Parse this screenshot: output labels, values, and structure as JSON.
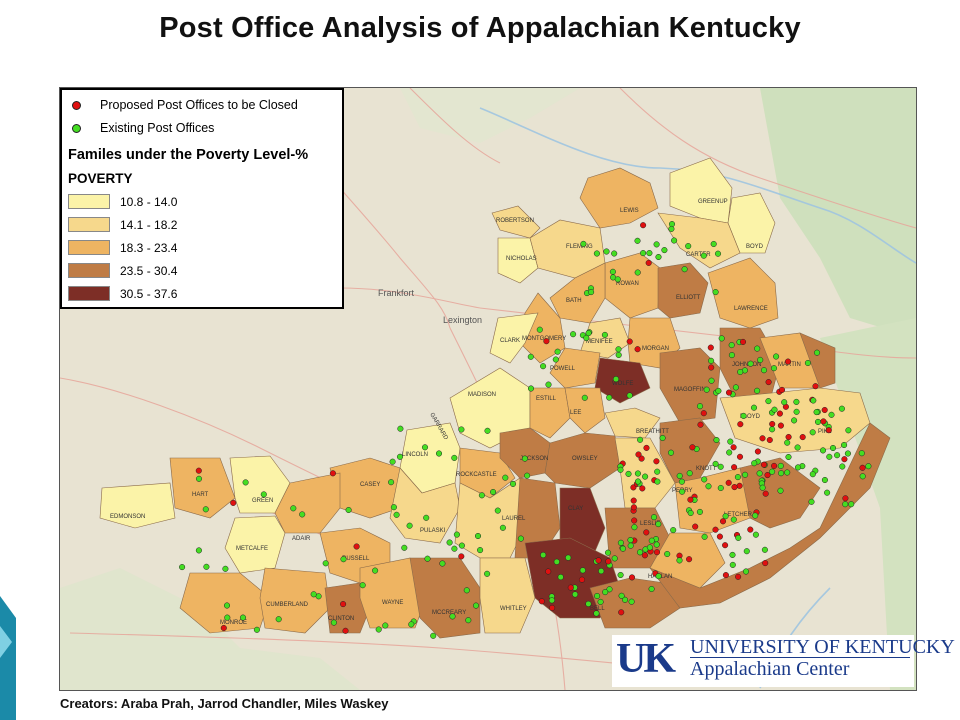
{
  "title": "Post Office Analysis of Appalachian Kentucky",
  "legend": {
    "closed_label": "Proposed Post Offices to be Closed",
    "existing_label": "Existing Post Offices",
    "title": "Familes under the Poverty Level-%",
    "subtitle": "POVERTY",
    "classes": [
      {
        "label": "10.8 - 14.0",
        "color": "#fbf3a8"
      },
      {
        "label": "14.1 - 18.2",
        "color": "#f6d88c"
      },
      {
        "label": "18.3 - 23.4",
        "color": "#eeb462"
      },
      {
        "label": "23.5 - 30.4",
        "color": "#bf7c45"
      },
      {
        "label": "30.5 - 37.6",
        "color": "#7d2e26"
      }
    ],
    "closed_color": "#e01010",
    "existing_color": "#44dd22"
  },
  "cities": [
    "Frankfort",
    "Lexington"
  ],
  "counties": {
    "robertson": "ROBERTSON",
    "nicholas": "NICHOLAS",
    "fleming": "FLEMING",
    "lewis": "LEWIS",
    "greenup": "GREENUP",
    "boyd": "BOYD",
    "carter": "CARTER",
    "rowan": "ROWAN",
    "bath": "BATH",
    "elliott": "ELLIOTT",
    "lawrence": "LAWRENCE",
    "montgomery": "MONTGOMERY",
    "menifee": "MENIFEE",
    "morgan": "MORGAN",
    "clark": "CLARK",
    "powell": "POWELL",
    "wolfe": "WOLFE",
    "magoffin": "MAGOFFIN",
    "johnson": "JOHNSON",
    "martin": "MARTIN",
    "madison": "MADISON",
    "estill": "ESTILL",
    "lee": "LEE",
    "breathitt": "BREATHITT",
    "floyd": "FLOYD",
    "pike": "PIKE",
    "garrard": "GARRARD",
    "jackson": "JACKSON",
    "owsley": "OWSLEY",
    "knott": "KNOTT",
    "lincoln": "LINCOLN",
    "rockcastle": "ROCKCASTLE",
    "perry": "PERRY",
    "letcher": "LETCHER",
    "clay": "CLAY",
    "leslie": "LESLIE",
    "casey": "CASEY",
    "pulaski": "PULASKI",
    "laurel": "LAUREL",
    "adair": "ADAIR",
    "russell": "RUSSELL",
    "hart": "HART",
    "green": "GREEN",
    "edmonson": "EDMONSON",
    "metcalfe": "METCALFE",
    "monroe": "MONROE",
    "cumberland": "CUMBERLAND",
    "clinton": "CLINTON",
    "wayne": "WAYNE",
    "mccreary": "MCCREARY",
    "whitley": "WHITLEY",
    "bell": "BELL",
    "harlan": "HARLAN"
  },
  "logo": {
    "mark": "UK",
    "line1": "UNIVERSITY OF KENTUCKY",
    "line2": "Appalachian Center"
  },
  "creators": "Creators: Araba Prah, Jarrod Chandler, Miles Waskey"
}
